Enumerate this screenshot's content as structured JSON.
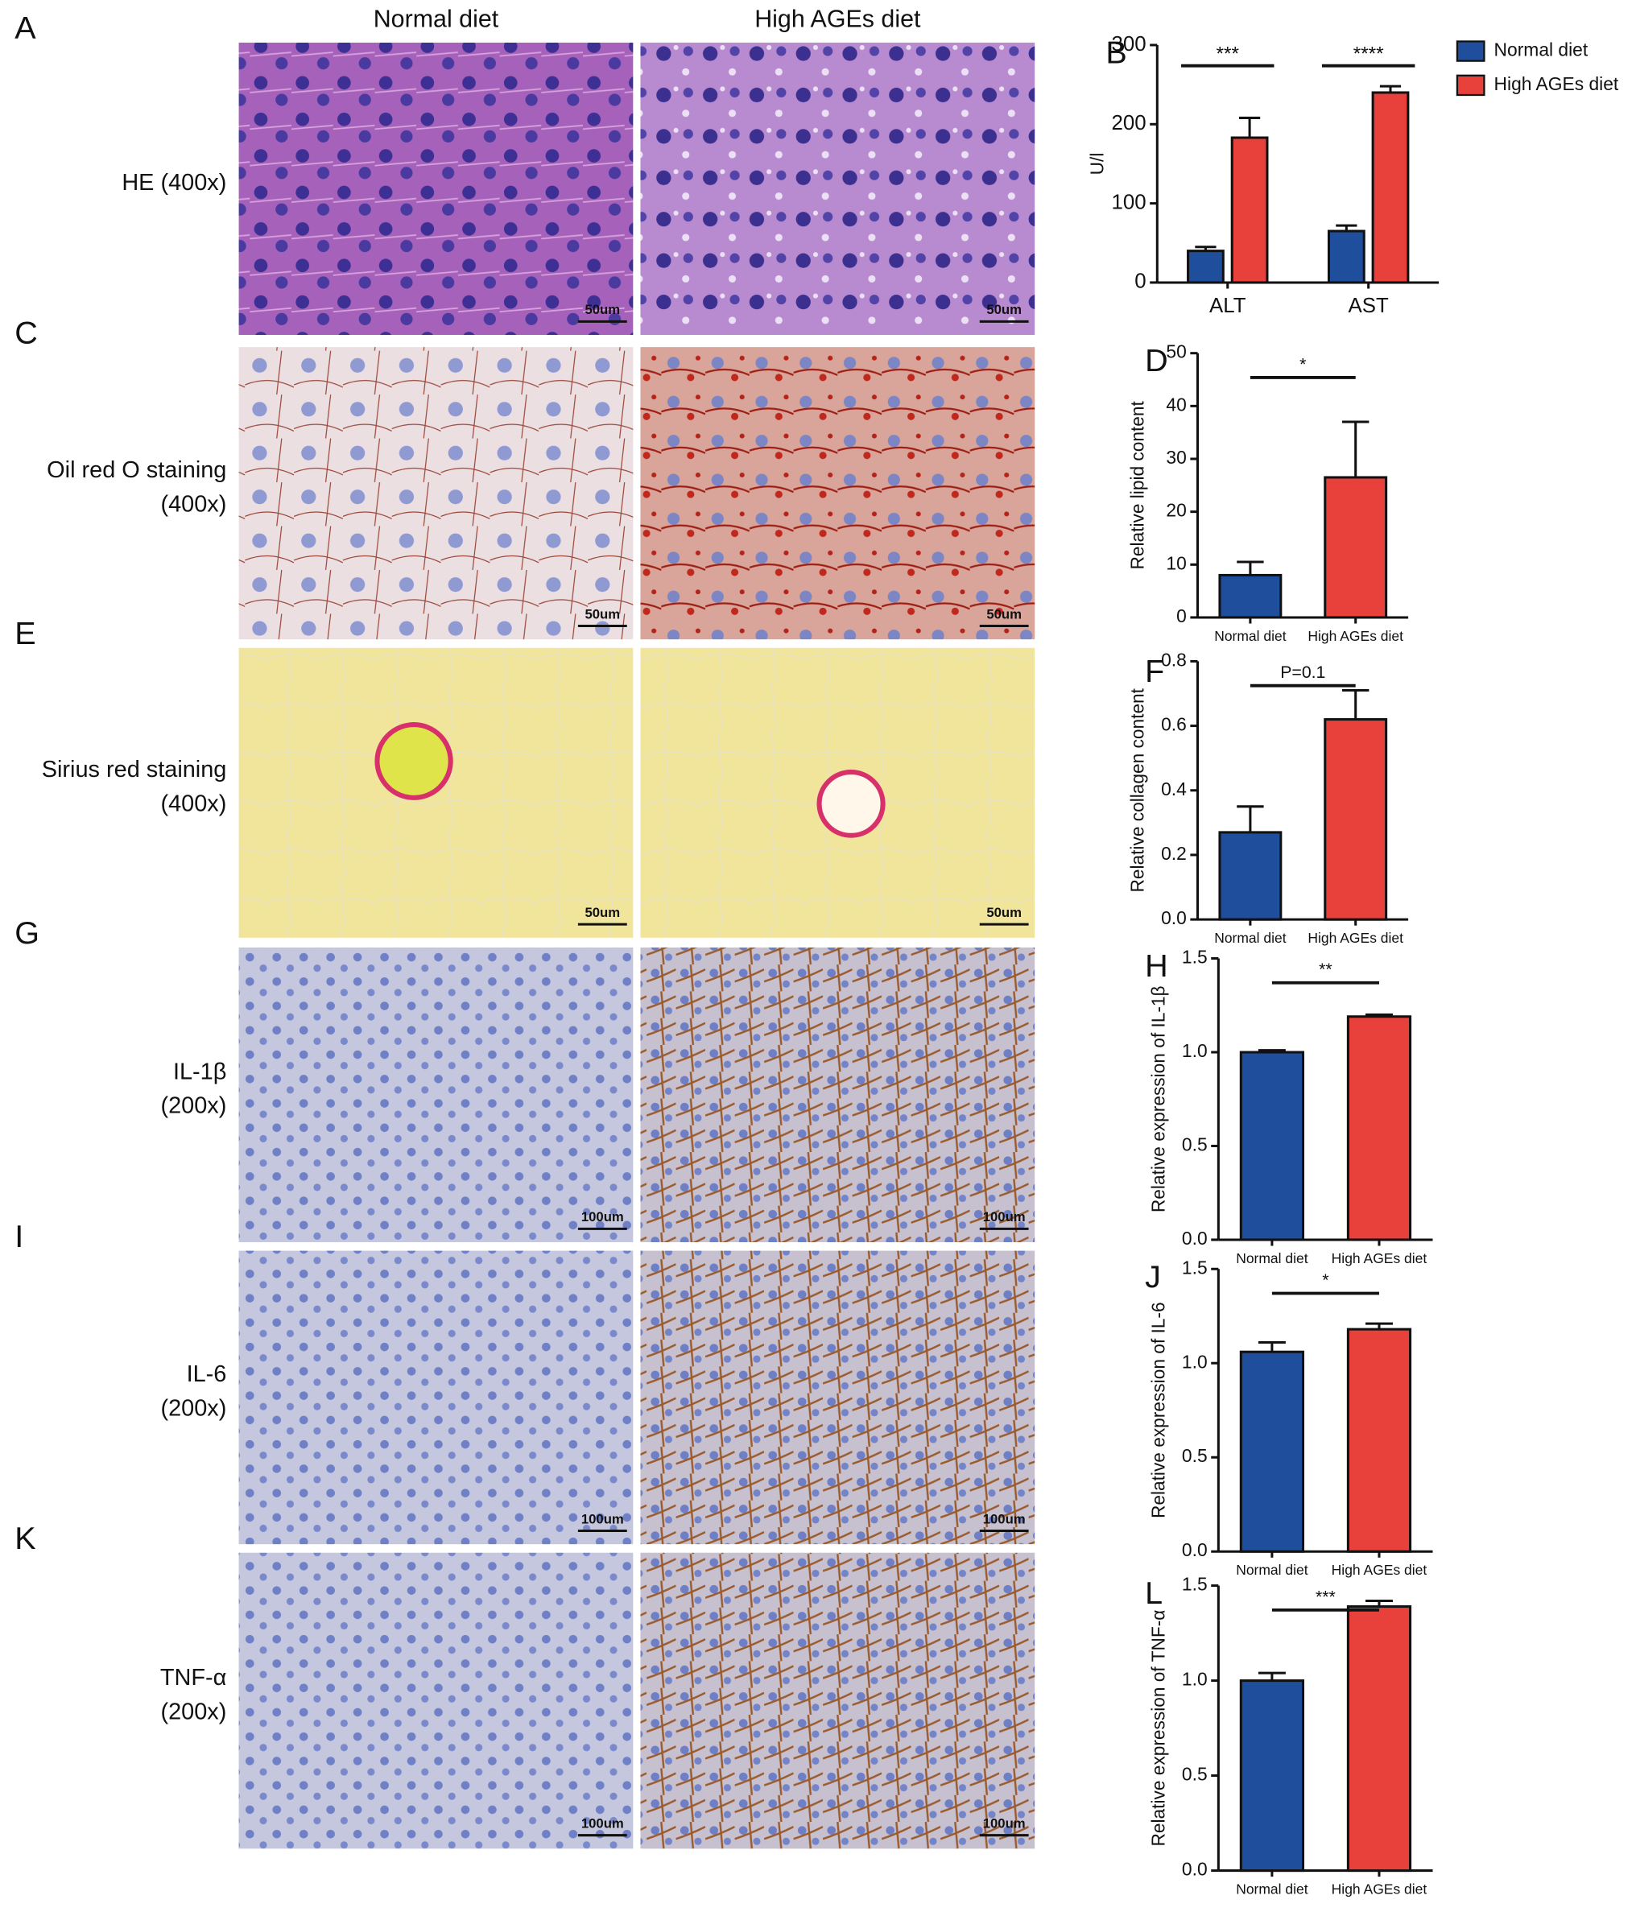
{
  "figure": {
    "column_headers": [
      "Normal diet",
      "High AGEs diet"
    ],
    "rows": [
      {
        "letter": "A",
        "label": [
          "HE (400x)"
        ],
        "scale_bars": [
          "50um",
          "50um"
        ]
      },
      {
        "letter": "C",
        "label": [
          "Oil red O staining",
          "(400x)"
        ],
        "scale_bars": [
          "50um",
          "50um"
        ]
      },
      {
        "letter": "E",
        "label": [
          "Sirius red staining",
          "(400x)"
        ],
        "scale_bars": [
          "50um",
          "50um"
        ]
      },
      {
        "letter": "G",
        "label": [
          "IL-1β",
          "(200x)"
        ],
        "scale_bars": [
          "100um",
          "100um"
        ]
      },
      {
        "letter": "I",
        "label": [
          "IL-6",
          "(200x)"
        ],
        "scale_bars": [
          "100um",
          "100um"
        ]
      },
      {
        "letter": "K",
        "label": [
          "TNF-α",
          "(200x)"
        ],
        "scale_bars": [
          "100um",
          "100um"
        ]
      }
    ]
  },
  "chart_data": [
    {
      "type": "bar",
      "label": "B",
      "ylabel": "U/l",
      "categories": [
        "ALT",
        "AST"
      ],
      "series": [
        {
          "name": "Normal diet",
          "color": "#1f4e9c",
          "values": [
            40,
            65
          ],
          "errors": [
            5,
            7
          ]
        },
        {
          "name": "High AGEs diet",
          "color": "#e8413c",
          "values": [
            183,
            240
          ],
          "errors": [
            25,
            8
          ]
        }
      ],
      "annotations": [
        "***",
        "****"
      ],
      "ylim": [
        0,
        300
      ],
      "yticks": [
        0,
        100,
        200,
        300
      ]
    },
    {
      "type": "bar",
      "label": "D",
      "ylabel": "Relative lipid content",
      "categories": [
        "Normal diet",
        "High AGEs diet"
      ],
      "values": [
        8,
        26.5
      ],
      "errors": [
        2.5,
        10.5
      ],
      "colors": [
        "#1f4e9c",
        "#e8413c"
      ],
      "annotation": "*",
      "ylim": [
        0,
        50
      ],
      "yticks": [
        0,
        10,
        20,
        30,
        40,
        50
      ]
    },
    {
      "type": "bar",
      "label": "F",
      "ylabel": "Relative collagen content",
      "categories": [
        "Normal diet",
        "High AGEs diet"
      ],
      "values": [
        0.27,
        0.62
      ],
      "errors": [
        0.08,
        0.09
      ],
      "colors": [
        "#1f4e9c",
        "#e8413c"
      ],
      "annotation": "P=0.1",
      "ylim": [
        0,
        0.8
      ],
      "yticks": [
        {
          "value": 0,
          "label": "0.0"
        },
        0.2,
        0.4,
        0.6,
        0.8
      ]
    },
    {
      "type": "bar",
      "label": "H",
      "ylabel": "Relative expression of IL-1β",
      "categories": [
        "Normal diet",
        "High AGEs diet"
      ],
      "values": [
        1.0,
        1.19
      ],
      "errors": [
        0.01,
        0.01
      ],
      "colors": [
        "#1f4e9c",
        "#e8413c"
      ],
      "annotation": "**",
      "ylim": [
        0,
        1.5
      ],
      "yticks": [
        {
          "value": 0,
          "label": "0.0"
        },
        0.5,
        {
          "value": 1,
          "label": "1.0"
        },
        1.5
      ]
    },
    {
      "type": "bar",
      "label": "J",
      "ylabel": "Relative expression of IL-6",
      "categories": [
        "Normal diet",
        "High AGEs diet"
      ],
      "values": [
        1.06,
        1.18
      ],
      "errors": [
        0.05,
        0.03
      ],
      "colors": [
        "#1f4e9c",
        "#e8413c"
      ],
      "annotation": "*",
      "ylim": [
        0,
        1.5
      ],
      "yticks": [
        {
          "value": 0,
          "label": "0.0"
        },
        0.5,
        {
          "value": 1,
          "label": "1.0"
        },
        1.5
      ]
    },
    {
      "type": "bar",
      "label": "L",
      "ylabel": "Relative expression of TNF-α",
      "categories": [
        "Normal diet",
        "High AGEs diet"
      ],
      "values": [
        1.0,
        1.39
      ],
      "errors": [
        0.04,
        0.03
      ],
      "colors": [
        "#1f4e9c",
        "#e8413c"
      ],
      "annotation": "***",
      "ylim": [
        0,
        1.5
      ],
      "yticks": [
        {
          "value": 0,
          "label": "0.0"
        },
        0.5,
        {
          "value": 1,
          "label": "1.0"
        },
        1.5
      ]
    }
  ]
}
